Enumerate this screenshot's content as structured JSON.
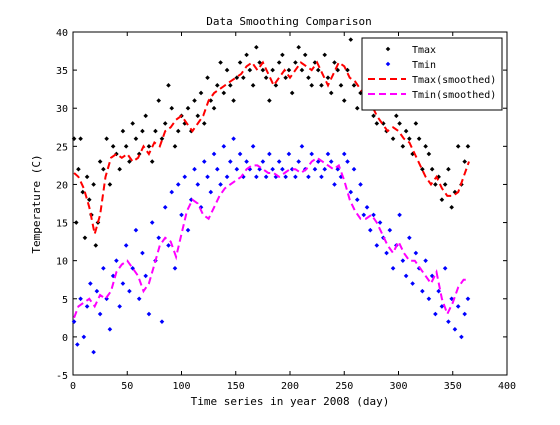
{
  "chart_data": {
    "type": "scatter",
    "title": "Data Smoothing Comparison",
    "xlabel": "Time series in year 2008 (day)",
    "ylabel": "Temperature (C)",
    "xlim": [
      0,
      400
    ],
    "ylim": [
      -5,
      40
    ],
    "xticks": [
      0,
      50,
      100,
      150,
      200,
      250,
      300,
      350,
      400
    ],
    "yticks": [
      -5,
      0,
      5,
      10,
      15,
      20,
      25,
      30,
      35,
      40
    ],
    "grid": false,
    "legend_position": "top-right",
    "series": [
      {
        "name": "Tmax",
        "style": "markers",
        "color": "#000000",
        "x": [
          1,
          3,
          5,
          7,
          9,
          11,
          13,
          15,
          17,
          19,
          21,
          23,
          25,
          28,
          31,
          34,
          37,
          40,
          43,
          46,
          49,
          52,
          55,
          58,
          61,
          64,
          67,
          70,
          73,
          76,
          79,
          82,
          85,
          88,
          91,
          94,
          97,
          100,
          103,
          106,
          109,
          112,
          115,
          118,
          121,
          124,
          127,
          130,
          133,
          136,
          139,
          142,
          145,
          148,
          151,
          154,
          157,
          160,
          163,
          166,
          169,
          172,
          175,
          178,
          181,
          184,
          187,
          190,
          193,
          196,
          199,
          202,
          205,
          208,
          211,
          214,
          217,
          220,
          223,
          226,
          229,
          232,
          235,
          238,
          241,
          244,
          247,
          250,
          253,
          256,
          259,
          262,
          265,
          268,
          271,
          274,
          277,
          280,
          283,
          286,
          289,
          292,
          295,
          298,
          301,
          304,
          307,
          310,
          313,
          316,
          319,
          322,
          325,
          328,
          331,
          334,
          337,
          340,
          343,
          346,
          349,
          352,
          355,
          358,
          361,
          364
        ],
        "y": [
          26,
          15,
          22,
          26,
          19,
          13,
          21,
          18,
          16,
          20,
          12,
          15,
          23,
          22,
          26,
          20,
          25,
          24,
          22,
          27,
          25,
          23,
          28,
          26,
          24,
          27,
          29,
          25,
          23,
          27,
          31,
          26,
          28,
          33,
          30,
          25,
          27,
          29,
          28,
          30,
          27,
          31,
          29,
          32,
          28,
          34,
          31,
          30,
          33,
          36,
          32,
          35,
          33,
          31,
          34,
          36,
          34,
          37,
          35,
          33,
          38,
          36,
          35,
          34,
          31,
          35,
          33,
          36,
          37,
          34,
          35,
          32,
          36,
          38,
          35,
          37,
          34,
          33,
          36,
          35,
          33,
          37,
          34,
          32,
          36,
          35,
          33,
          31,
          35,
          39,
          33,
          30,
          32,
          34,
          31,
          30,
          29,
          28,
          32,
          28,
          27,
          30,
          26,
          29,
          28,
          25,
          27,
          26,
          24,
          28,
          26,
          22,
          25,
          24,
          22,
          20,
          21,
          18,
          20,
          22,
          17,
          19,
          25,
          20,
          23,
          25
        ]
      },
      {
        "name": "Tmin",
        "style": "markers",
        "color": "#0000ff",
        "x": [
          1,
          4,
          7,
          10,
          13,
          16,
          19,
          22,
          25,
          28,
          31,
          34,
          37,
          40,
          43,
          46,
          49,
          52,
          55,
          58,
          61,
          64,
          67,
          70,
          73,
          76,
          79,
          82,
          85,
          88,
          91,
          94,
          97,
          100,
          103,
          106,
          109,
          112,
          115,
          118,
          121,
          124,
          127,
          130,
          133,
          136,
          139,
          142,
          145,
          148,
          151,
          154,
          157,
          160,
          163,
          166,
          169,
          172,
          175,
          178,
          181,
          184,
          187,
          190,
          193,
          196,
          199,
          202,
          205,
          208,
          211,
          214,
          217,
          220,
          223,
          226,
          229,
          232,
          235,
          238,
          241,
          244,
          247,
          250,
          253,
          256,
          259,
          262,
          265,
          268,
          271,
          274,
          277,
          280,
          283,
          286,
          289,
          292,
          295,
          298,
          301,
          304,
          307,
          310,
          313,
          316,
          319,
          322,
          325,
          328,
          331,
          334,
          337,
          340,
          343,
          346,
          349,
          352,
          355,
          358,
          361,
          364
        ],
        "y": [
          2,
          -1,
          5,
          0,
          4,
          7,
          -2,
          6,
          3,
          9,
          5,
          1,
          8,
          10,
          4,
          7,
          12,
          6,
          9,
          14,
          5,
          11,
          8,
          3,
          15,
          10,
          13,
          2,
          17,
          12,
          19,
          9,
          20,
          16,
          21,
          14,
          18,
          22,
          20,
          17,
          23,
          21,
          19,
          24,
          22,
          20,
          25,
          21,
          23,
          26,
          22,
          24,
          21,
          23,
          22,
          25,
          21,
          22,
          23,
          21,
          24,
          22,
          21,
          23,
          22,
          21,
          24,
          22,
          21,
          23,
          25,
          22,
          21,
          24,
          22,
          23,
          21,
          22,
          24,
          23,
          20,
          22,
          21,
          24,
          23,
          19,
          22,
          18,
          20,
          16,
          17,
          14,
          16,
          12,
          15,
          13,
          11,
          14,
          9,
          12,
          16,
          10,
          8,
          13,
          7,
          11,
          9,
          6,
          10,
          5,
          8,
          3,
          6,
          4,
          9,
          2,
          5,
          1,
          4,
          0,
          3,
          5
        ]
      },
      {
        "name": "Tmax(smoothed)",
        "style": "dashed-line",
        "color": "#ff0000",
        "x": [
          1,
          5,
          10,
          15,
          20,
          25,
          30,
          35,
          40,
          45,
          50,
          55,
          60,
          65,
          70,
          75,
          80,
          85,
          90,
          95,
          100,
          105,
          110,
          115,
          120,
          125,
          130,
          135,
          140,
          145,
          150,
          155,
          160,
          165,
          170,
          175,
          180,
          185,
          190,
          195,
          200,
          205,
          210,
          215,
          220,
          225,
          230,
          235,
          240,
          245,
          250,
          255,
          260,
          265,
          270,
          275,
          280,
          285,
          290,
          295,
          300,
          305,
          310,
          315,
          320,
          325,
          330,
          335,
          340,
          345,
          350,
          355,
          360,
          365
        ],
        "y": [
          21.5,
          21,
          19.5,
          17,
          13.5,
          16,
          21,
          23.5,
          24,
          23.5,
          24,
          23,
          23.5,
          25,
          24,
          25.5,
          25,
          27,
          27.5,
          28.5,
          29,
          28,
          27,
          28,
          29,
          31,
          32,
          32.5,
          33,
          33.5,
          34,
          34.5,
          35.5,
          36,
          35,
          36,
          34.5,
          33,
          34,
          35,
          34,
          35,
          36,
          35.5,
          35,
          36,
          34.5,
          33,
          34.5,
          36,
          35.5,
          34,
          33.5,
          32.5,
          31.5,
          30.5,
          29,
          28,
          27,
          27.5,
          27,
          26,
          25.5,
          24,
          22.5,
          21,
          20,
          21,
          19.5,
          18.5,
          18.5,
          19,
          21,
          23
        ]
      },
      {
        "name": "Tmin(smoothed)",
        "style": "dashed-line",
        "color": "#ff00ff",
        "x": [
          1,
          5,
          10,
          15,
          20,
          25,
          30,
          35,
          40,
          45,
          50,
          55,
          60,
          65,
          70,
          75,
          80,
          85,
          90,
          95,
          100,
          105,
          110,
          115,
          120,
          125,
          130,
          135,
          140,
          145,
          150,
          155,
          160,
          165,
          170,
          175,
          180,
          185,
          190,
          195,
          200,
          205,
          210,
          215,
          220,
          225,
          230,
          235,
          240,
          245,
          250,
          255,
          260,
          265,
          270,
          275,
          280,
          285,
          290,
          295,
          300,
          305,
          310,
          315,
          320,
          325,
          330,
          335,
          340,
          345,
          350,
          355,
          360,
          365
        ],
        "y": [
          2.5,
          4,
          4.5,
          5,
          4,
          5.5,
          5,
          6,
          8.5,
          9.5,
          10,
          9,
          8,
          6,
          7,
          9.5,
          12,
          13,
          12.5,
          10.5,
          13.5,
          16.5,
          18,
          17.5,
          16,
          15.5,
          17,
          18.5,
          19.5,
          20,
          20.5,
          21,
          22,
          22.5,
          22.5,
          22,
          21.5,
          21.5,
          21,
          21.5,
          22,
          22,
          21.5,
          22,
          23,
          23.5,
          23,
          22.5,
          22,
          22.5,
          20.5,
          18,
          16.5,
          15.5,
          15.5,
          16,
          15,
          13.5,
          12,
          11,
          12.5,
          11,
          10,
          10,
          9,
          8,
          7,
          8.5,
          5,
          3,
          4.5,
          6.5,
          7.5,
          7.5
        ]
      }
    ]
  }
}
